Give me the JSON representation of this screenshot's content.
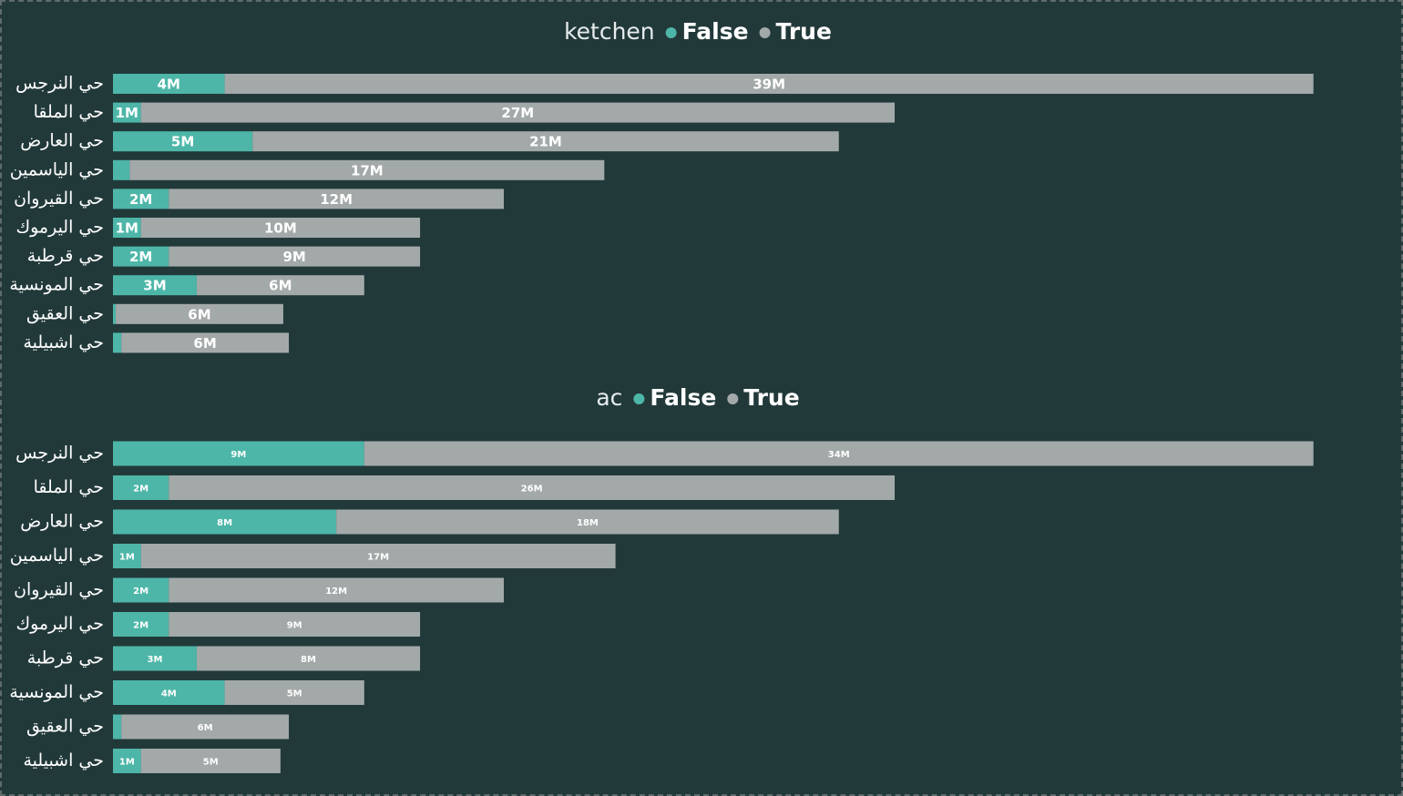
{
  "colors": {
    "background": "#22393a",
    "false": "#4db6a8",
    "true": "#a3a9a9",
    "text": "#ffffff"
  },
  "chart_data": [
    {
      "type": "bar",
      "orientation": "horizontal",
      "stacked": true,
      "legend_title": "ketchen",
      "legend_position": "top-center",
      "categories": [
        "حي النرجس",
        "حي الملقا",
        "حي العارض",
        "حي الياسمين",
        "حي القيروان",
        "حي اليرموك",
        "حي قرطبة",
        "حي المونسية",
        "حي العقيق",
        "حي اشبيلية"
      ],
      "series": [
        {
          "name": "False",
          "color": "#4db6a8",
          "values": [
            4,
            1,
            5,
            0.6,
            2,
            1,
            2,
            3,
            0.1,
            0.3
          ],
          "labels": [
            "4M",
            "1M",
            "5M",
            "",
            "2M",
            "1M",
            "2M",
            "3M",
            "",
            ""
          ]
        },
        {
          "name": "True",
          "color": "#a3a9a9",
          "values": [
            39,
            27,
            21,
            17,
            12,
            10,
            9,
            6,
            6,
            6
          ],
          "labels": [
            "39M",
            "27M",
            "21M",
            "17M",
            "12M",
            "10M",
            "9M",
            "6M",
            "6M",
            "6M"
          ]
        }
      ],
      "xlim": [
        0,
        43.5
      ]
    },
    {
      "type": "bar",
      "orientation": "horizontal",
      "stacked": true,
      "legend_title": "ac",
      "legend_position": "top-center",
      "categories": [
        "حي النرجس",
        "حي الملقا",
        "حي العارض",
        "حي الياسمين",
        "حي القيروان",
        "حي اليرموك",
        "حي قرطبة",
        "حي المونسية",
        "حي العقيق",
        "حي اشبيلية"
      ],
      "series": [
        {
          "name": "False",
          "color": "#4db6a8",
          "values": [
            9,
            2,
            8,
            1,
            2,
            2,
            3,
            4,
            0.3,
            1
          ],
          "labels": [
            "9M",
            "2M",
            "8M",
            "1M",
            "2M",
            "2M",
            "3M",
            "4M",
            "",
            "1M"
          ]
        },
        {
          "name": "True",
          "color": "#a3a9a9",
          "values": [
            34,
            26,
            18,
            17,
            12,
            9,
            8,
            5,
            6,
            5
          ],
          "labels": [
            "34M",
            "26M",
            "18M",
            "17M",
            "12M",
            "9M",
            "8M",
            "5M",
            "6M",
            "5M"
          ]
        }
      ],
      "xlim": [
        0,
        43.5
      ]
    }
  ]
}
